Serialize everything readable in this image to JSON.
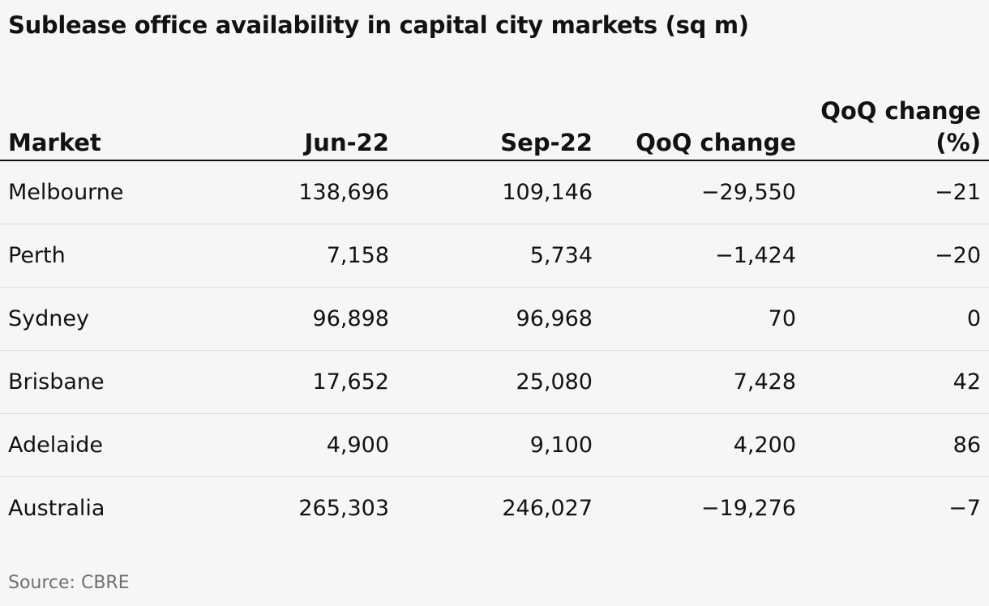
{
  "title": "Sublease office availability in capital city markets (sq m)",
  "source": "Source: CBRE",
  "chart_data": {
    "type": "table",
    "title": "Sublease office availability in capital city markets (sq m)",
    "columns": [
      "Market",
      "Jun-22",
      "Sep-22",
      "QoQ change",
      "QoQ change (%)"
    ],
    "rows": [
      [
        "Melbourne",
        "138,696",
        "109,146",
        "−29,550",
        "−21"
      ],
      [
        "Perth",
        "7,158",
        "5,734",
        "−1,424",
        "−20"
      ],
      [
        "Sydney",
        "96,898",
        "96,968",
        "70",
        "0"
      ],
      [
        "Brisbane",
        "17,652",
        "25,080",
        "7,428",
        "42"
      ],
      [
        "Adelaide",
        "4,900",
        "9,100",
        "4,200",
        "86"
      ],
      [
        "Australia",
        "265,303",
        "246,027",
        "−19,276",
        "−7"
      ]
    ]
  }
}
